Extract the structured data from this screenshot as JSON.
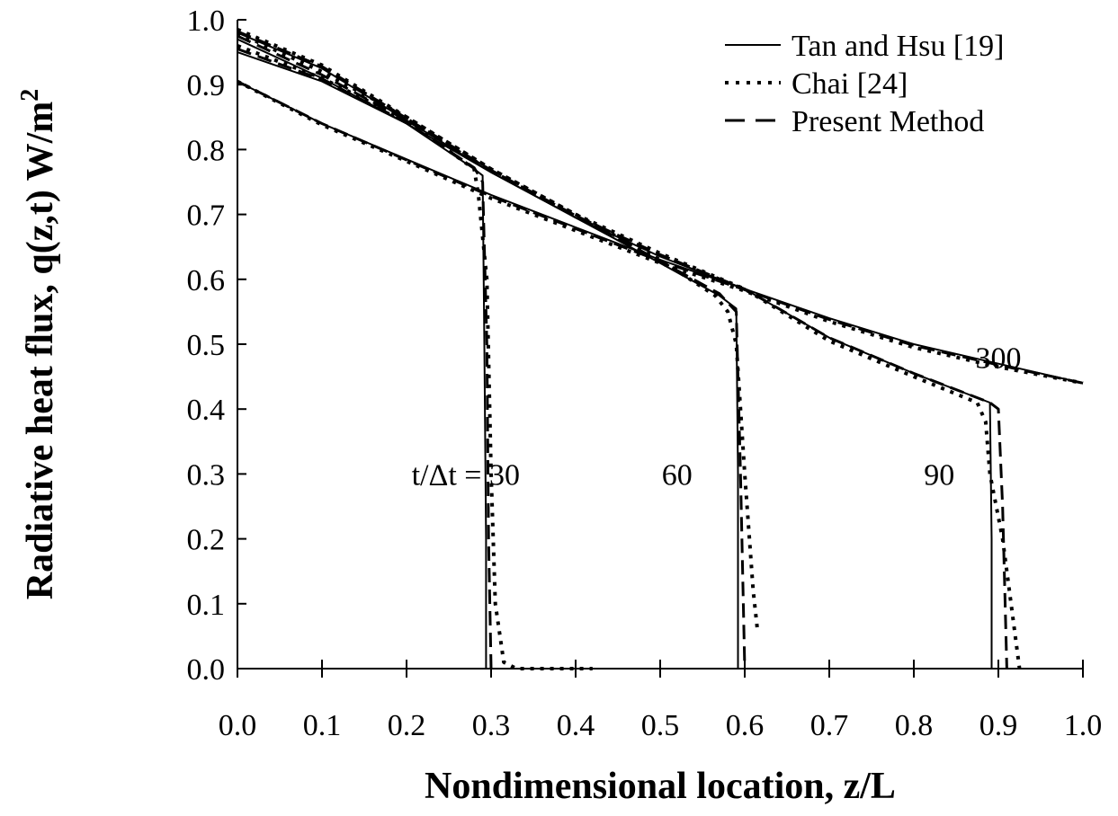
{
  "chart_data": {
    "type": "line",
    "xlabel": "Nondimensional location, z/L",
    "ylabel": "Radiative heat flux, q(z,t) W/m",
    "ylabel_sup": "2",
    "xlim": [
      0,
      1
    ],
    "ylim": [
      0,
      1
    ],
    "x_ticks": [
      "0.0",
      "0.1",
      "0.2",
      "0.3",
      "0.4",
      "0.5",
      "0.6",
      "0.7",
      "0.8",
      "0.9",
      "1.0"
    ],
    "y_ticks": [
      "0.0",
      "0.1",
      "0.2",
      "0.3",
      "0.4",
      "0.5",
      "0.6",
      "0.7",
      "0.8",
      "0.9",
      "1.0"
    ],
    "grid": false,
    "legend_position": "top-right",
    "legend": [
      {
        "label": "Tan and Hsu [19]",
        "style": "solid"
      },
      {
        "label": "Chai [24]",
        "style": "dotted"
      },
      {
        "label": "Present Method",
        "style": "dashed"
      }
    ],
    "annotations": [
      {
        "text": "t/Δt = 30",
        "x": 0.27,
        "y": 0.3
      },
      {
        "text": "60",
        "x": 0.52,
        "y": 0.3
      },
      {
        "text": "90",
        "x": 0.83,
        "y": 0.3
      },
      {
        "text": "300",
        "x": 0.9,
        "y": 0.48
      }
    ],
    "series": [
      {
        "group": "t/Δt = 30",
        "style": "solid",
        "points": [
          [
            0,
            0.95
          ],
          [
            0.1,
            0.905
          ],
          [
            0.2,
            0.84
          ],
          [
            0.28,
            0.77
          ],
          [
            0.29,
            0.76
          ],
          [
            0.292,
            0.5
          ],
          [
            0.294,
            0.2
          ],
          [
            0.294,
            0
          ]
        ]
      },
      {
        "group": "t/Δt = 30",
        "style": "dotted",
        "points": [
          [
            0,
            0.96
          ],
          [
            0.1,
            0.91
          ],
          [
            0.2,
            0.845
          ],
          [
            0.28,
            0.77
          ],
          [
            0.285,
            0.73
          ],
          [
            0.295,
            0.6
          ],
          [
            0.3,
            0.3
          ],
          [
            0.305,
            0.1
          ],
          [
            0.315,
            0.01
          ],
          [
            0.33,
            0
          ],
          [
            0.42,
            0
          ]
        ]
      },
      {
        "group": "t/Δt = 30",
        "style": "dashed",
        "points": [
          [
            0,
            0.955
          ],
          [
            0.1,
            0.908
          ],
          [
            0.2,
            0.842
          ],
          [
            0.28,
            0.772
          ],
          [
            0.29,
            0.75
          ],
          [
            0.295,
            0.5
          ],
          [
            0.297,
            0.2
          ],
          [
            0.3,
            0
          ]
        ]
      },
      {
        "group": "60",
        "style": "solid",
        "points": [
          [
            0,
            0.97
          ],
          [
            0.1,
            0.91
          ],
          [
            0.2,
            0.84
          ],
          [
            0.3,
            0.765
          ],
          [
            0.4,
            0.695
          ],
          [
            0.5,
            0.625
          ],
          [
            0.57,
            0.575
          ],
          [
            0.59,
            0.555
          ],
          [
            0.592,
            0.3
          ],
          [
            0.592,
            0
          ]
        ]
      },
      {
        "group": "60",
        "style": "dotted",
        "points": [
          [
            0,
            0.98
          ],
          [
            0.1,
            0.92
          ],
          [
            0.2,
            0.85
          ],
          [
            0.3,
            0.77
          ],
          [
            0.4,
            0.7
          ],
          [
            0.5,
            0.63
          ],
          [
            0.565,
            0.575
          ],
          [
            0.58,
            0.55
          ],
          [
            0.59,
            0.5
          ],
          [
            0.6,
            0.3
          ],
          [
            0.61,
            0.12
          ],
          [
            0.615,
            0.06
          ]
        ]
      },
      {
        "group": "60",
        "style": "dashed",
        "points": [
          [
            0,
            0.975
          ],
          [
            0.1,
            0.915
          ],
          [
            0.2,
            0.845
          ],
          [
            0.3,
            0.768
          ],
          [
            0.4,
            0.698
          ],
          [
            0.5,
            0.628
          ],
          [
            0.57,
            0.578
          ],
          [
            0.59,
            0.55
          ],
          [
            0.595,
            0.3
          ],
          [
            0.6,
            0
          ]
        ]
      },
      {
        "group": "90",
        "style": "solid",
        "points": [
          [
            0,
            0.98
          ],
          [
            0.1,
            0.925
          ],
          [
            0.2,
            0.845
          ],
          [
            0.3,
            0.765
          ],
          [
            0.4,
            0.695
          ],
          [
            0.5,
            0.635
          ],
          [
            0.6,
            0.585
          ],
          [
            0.7,
            0.51
          ],
          [
            0.8,
            0.455
          ],
          [
            0.89,
            0.41
          ],
          [
            0.892,
            0.2
          ],
          [
            0.892,
            0
          ]
        ]
      },
      {
        "group": "90",
        "style": "dotted",
        "points": [
          [
            0,
            0.985
          ],
          [
            0.1,
            0.93
          ],
          [
            0.2,
            0.85
          ],
          [
            0.3,
            0.77
          ],
          [
            0.4,
            0.7
          ],
          [
            0.5,
            0.64
          ],
          [
            0.6,
            0.585
          ],
          [
            0.7,
            0.505
          ],
          [
            0.8,
            0.45
          ],
          [
            0.875,
            0.41
          ],
          [
            0.885,
            0.38
          ],
          [
            0.89,
            0.3
          ],
          [
            0.905,
            0.2
          ],
          [
            0.915,
            0.1
          ],
          [
            0.925,
            0
          ]
        ]
      },
      {
        "group": "90",
        "style": "dashed",
        "points": [
          [
            0,
            0.982
          ],
          [
            0.1,
            0.928
          ],
          [
            0.2,
            0.848
          ],
          [
            0.3,
            0.768
          ],
          [
            0.4,
            0.698
          ],
          [
            0.5,
            0.638
          ],
          [
            0.6,
            0.585
          ],
          [
            0.7,
            0.51
          ],
          [
            0.8,
            0.455
          ],
          [
            0.89,
            0.41
          ],
          [
            0.9,
            0.4
          ],
          [
            0.905,
            0.25
          ],
          [
            0.91,
            0
          ]
        ]
      },
      {
        "group": "300",
        "style": "solid",
        "points": [
          [
            0,
            0.905
          ],
          [
            0.1,
            0.84
          ],
          [
            0.2,
            0.785
          ],
          [
            0.3,
            0.73
          ],
          [
            0.4,
            0.68
          ],
          [
            0.5,
            0.63
          ],
          [
            0.6,
            0.585
          ],
          [
            0.7,
            0.54
          ],
          [
            0.8,
            0.5
          ],
          [
            0.9,
            0.47
          ],
          [
            1,
            0.44
          ]
        ]
      },
      {
        "group": "300",
        "style": "dotted",
        "points": [
          [
            0,
            0.905
          ],
          [
            0.1,
            0.838
          ],
          [
            0.2,
            0.782
          ],
          [
            0.3,
            0.725
          ],
          [
            0.4,
            0.675
          ],
          [
            0.5,
            0.625
          ],
          [
            0.6,
            0.582
          ],
          [
            0.7,
            0.535
          ],
          [
            0.8,
            0.495
          ],
          [
            0.9,
            0.465
          ],
          [
            1,
            0.44
          ]
        ]
      },
      {
        "group": "300",
        "style": "dashed",
        "points": [
          [
            0,
            0.905
          ],
          [
            0.1,
            0.84
          ],
          [
            0.2,
            0.784
          ],
          [
            0.3,
            0.728
          ],
          [
            0.4,
            0.678
          ],
          [
            0.5,
            0.628
          ],
          [
            0.6,
            0.584
          ],
          [
            0.7,
            0.538
          ],
          [
            0.8,
            0.498
          ],
          [
            0.9,
            0.468
          ],
          [
            1,
            0.44
          ]
        ]
      }
    ]
  }
}
